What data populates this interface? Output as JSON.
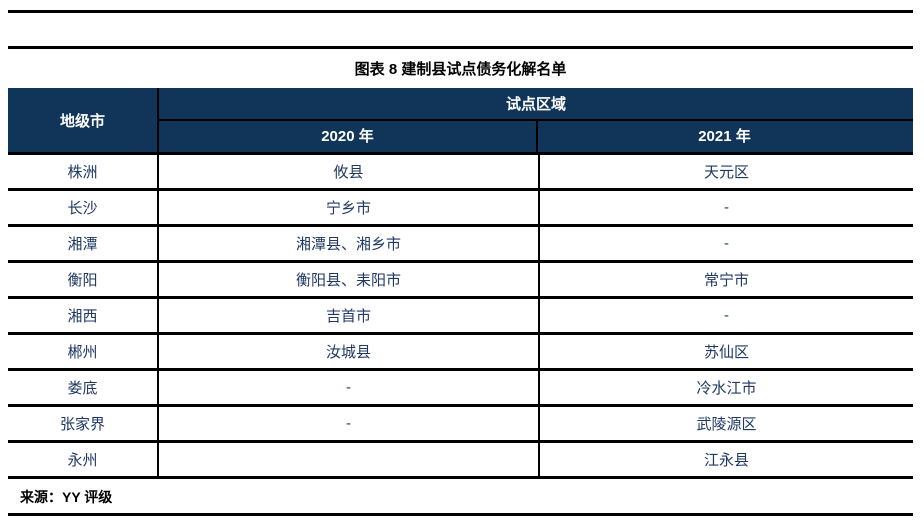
{
  "title": "图表 8  建制县试点债务化解名单",
  "source": "来源：YY 评级",
  "colors": {
    "header_bg": "#113459",
    "body_text": "#1F3864",
    "rule": "#000000"
  },
  "table": {
    "header": {
      "city": "地级市",
      "region_group": "试点区域",
      "year_2020": "2020 年",
      "year_2021": "2021 年"
    },
    "rows": [
      {
        "city": "株洲",
        "y2020": "攸县",
        "y2021": "天元区"
      },
      {
        "city": "长沙",
        "y2020": "宁乡市",
        "y2021": "-"
      },
      {
        "city": "湘潭",
        "y2020": "湘潭县、湘乡市",
        "y2021": "-"
      },
      {
        "city": "衡阳",
        "y2020": "衡阳县、耒阳市",
        "y2021": "常宁市"
      },
      {
        "city": "湘西",
        "y2020": "吉首市",
        "y2021": "-"
      },
      {
        "city": "郴州",
        "y2020": "汝城县",
        "y2021": "苏仙区"
      },
      {
        "city": "娄底",
        "y2020": "-",
        "y2021": "冷水江市"
      },
      {
        "city": "张家界",
        "y2020": "-",
        "y2021": "武陵源区"
      },
      {
        "city": "永州",
        "y2020": "",
        "y2021": "江永县"
      }
    ]
  }
}
